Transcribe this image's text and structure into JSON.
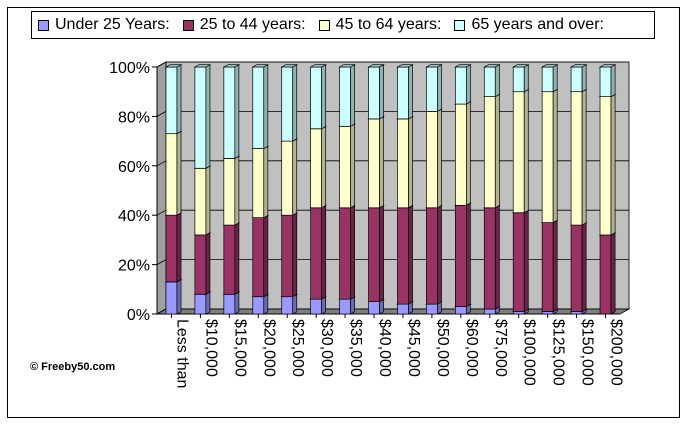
{
  "chart_data": {
    "type": "bar",
    "stacked": true,
    "percent_stacked": true,
    "style": "3d-column",
    "categories": [
      "Less than",
      "$10,000",
      "$15,000",
      "$20,000",
      "$25,000",
      "$30,000",
      "$35,000",
      "$40,000",
      "$45,000",
      "$50,000",
      "$60,000",
      "$75,000",
      "$100,000",
      "$125,000",
      "$150,000",
      "$200,000"
    ],
    "series": [
      {
        "name": "Under 25 Years:",
        "color": "#9999ff",
        "values": [
          13,
          8,
          8,
          7,
          7,
          6,
          6,
          5,
          4,
          4,
          3,
          2,
          1,
          1,
          1,
          0
        ]
      },
      {
        "name": "25 to 44 years:",
        "color": "#993366",
        "values": [
          27,
          24,
          28,
          32,
          33,
          37,
          37,
          38,
          39,
          39,
          41,
          41,
          40,
          36,
          35,
          32
        ]
      },
      {
        "name": "45 to 64 years:",
        "color": "#ffffcc",
        "values": [
          33,
          27,
          27,
          28,
          30,
          32,
          33,
          36,
          36,
          39,
          41,
          45,
          49,
          53,
          54,
          56
        ]
      },
      {
        "name": "65 years and over:",
        "color": "#ccffff",
        "values": [
          27,
          41,
          37,
          33,
          30,
          25,
          24,
          21,
          21,
          18,
          15,
          12,
          10,
          10,
          10,
          12
        ]
      }
    ],
    "ylim": [
      0,
      100
    ],
    "yticks": [
      "0%",
      "20%",
      "40%",
      "60%",
      "80%",
      "100%"
    ],
    "grid": true,
    "legend_position": "top",
    "title": "",
    "xlabel": "",
    "ylabel": "",
    "wall_color": "#c0c0c0",
    "floor_color": "#808080"
  },
  "credit": "© Freeby50.com"
}
